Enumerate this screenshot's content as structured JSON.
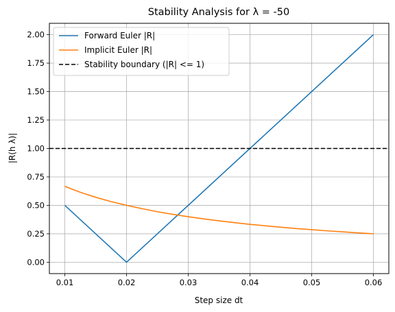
{
  "chart_data": {
    "type": "line",
    "title": "Stability Analysis for λ = -50",
    "xlabel": "Step size dt",
    "ylabel": "|R(h λ)|",
    "xlim": [
      0.0075,
      0.0625
    ],
    "ylim": [
      -0.1,
      2.1
    ],
    "xticks": [
      "0.01",
      "0.02",
      "0.03",
      "0.04",
      "0.05",
      "0.06"
    ],
    "yticks": [
      "0.00",
      "0.25",
      "0.50",
      "0.75",
      "1.00",
      "1.25",
      "1.50",
      "1.75",
      "2.00"
    ],
    "grid": true,
    "legend_position": "upper-left",
    "series": [
      {
        "name": "Forward Euler |R|",
        "color": "#1f77b4",
        "style": "solid",
        "x": [
          0.01,
          0.02,
          0.06
        ],
        "y": [
          0.5,
          0.0,
          2.0
        ]
      },
      {
        "name": "Implicit Euler |R|",
        "color": "#ff7f0e",
        "style": "solid",
        "x": [
          0.01,
          0.0125,
          0.015,
          0.0175,
          0.02,
          0.0225,
          0.025,
          0.0275,
          0.03,
          0.0325,
          0.035,
          0.0375,
          0.04,
          0.0425,
          0.045,
          0.0475,
          0.05,
          0.0525,
          0.055,
          0.0575,
          0.06
        ],
        "y": [
          0.667,
          0.615,
          0.571,
          0.533,
          0.5,
          0.471,
          0.444,
          0.421,
          0.4,
          0.381,
          0.364,
          0.348,
          0.333,
          0.32,
          0.308,
          0.296,
          0.286,
          0.276,
          0.267,
          0.258,
          0.25
        ]
      },
      {
        "name": "Stability boundary (|R| <= 1)",
        "color": "#000000",
        "style": "dashed",
        "hline": 1.0
      }
    ]
  }
}
